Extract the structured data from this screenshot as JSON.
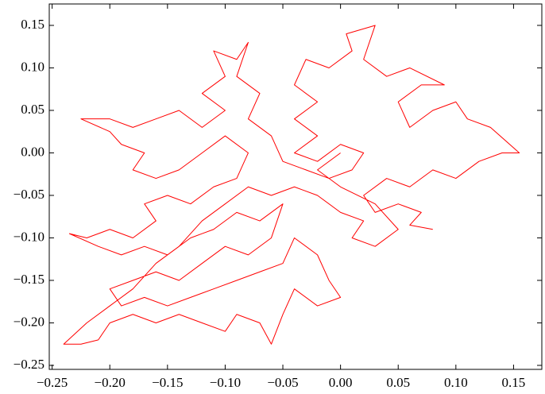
{
  "chart_data": {
    "type": "line",
    "x": [
      0.08,
      0.06,
      0.07,
      0.05,
      0.03,
      0.02,
      0.04,
      0.06,
      0.08,
      0.1,
      0.12,
      0.14,
      0.155,
      0.13,
      0.11,
      0.1,
      0.08,
      0.06,
      0.05,
      0.07,
      0.09,
      0.06,
      0.04,
      0.02,
      0.03,
      0.005,
      0.01,
      -0.01,
      -0.03,
      -0.04,
      -0.02,
      -0.04,
      -0.02,
      -0.04,
      -0.02,
      0.0,
      0.02,
      0.01,
      -0.01,
      -0.03,
      -0.05,
      -0.06,
      -0.08,
      -0.07,
      -0.09,
      -0.08,
      -0.09,
      -0.11,
      -0.1,
      -0.12,
      -0.1,
      -0.12,
      -0.14,
      -0.16,
      -0.18,
      -0.2,
      -0.225,
      -0.2,
      -0.19,
      -0.17,
      -0.18,
      -0.16,
      -0.14,
      -0.12,
      -0.1,
      -0.08,
      -0.09,
      -0.11,
      -0.13,
      -0.15,
      -0.17,
      -0.16,
      -0.18,
      -0.2,
      -0.22,
      -0.235,
      -0.21,
      -0.19,
      -0.17,
      -0.15,
      -0.13,
      -0.11,
      -0.09,
      -0.07,
      -0.05,
      -0.06,
      -0.08,
      -0.1,
      -0.12,
      -0.14,
      -0.16,
      -0.18,
      -0.2,
      -0.19,
      -0.17,
      -0.15,
      -0.13,
      -0.11,
      -0.09,
      -0.07,
      -0.05,
      -0.04,
      -0.02,
      -0.01,
      0.0,
      -0.02,
      -0.04,
      -0.05,
      -0.06,
      -0.07,
      -0.09,
      -0.1,
      -0.12,
      -0.14,
      -0.16,
      -0.18,
      -0.2,
      -0.21,
      -0.225,
      -0.24,
      -0.22,
      -0.2,
      -0.18,
      -0.16,
      -0.14,
      -0.12,
      -0.1,
      -0.08,
      -0.06,
      -0.04,
      -0.02,
      0.0,
      0.02,
      0.01,
      0.03,
      0.05,
      0.03,
      0.0,
      -0.02,
      0.0
    ],
    "series": [
      {
        "color": "#ff0000",
        "values": [
          -0.09,
          -0.085,
          -0.07,
          -0.06,
          -0.07,
          -0.05,
          -0.03,
          -0.04,
          -0.02,
          -0.03,
          -0.01,
          0.0,
          0.0,
          0.03,
          0.04,
          0.06,
          0.05,
          0.03,
          0.06,
          0.08,
          0.08,
          0.1,
          0.09,
          0.11,
          0.15,
          0.14,
          0.12,
          0.1,
          0.11,
          0.08,
          0.06,
          0.04,
          0.02,
          0.0,
          -0.01,
          0.01,
          0.0,
          -0.02,
          -0.03,
          -0.02,
          -0.01,
          0.02,
          0.04,
          0.07,
          0.09,
          0.13,
          0.11,
          0.12,
          0.09,
          0.07,
          0.05,
          0.03,
          0.05,
          0.04,
          0.03,
          0.04,
          0.04,
          0.025,
          0.01,
          0.0,
          -0.02,
          -0.03,
          -0.02,
          0.0,
          0.02,
          0.0,
          -0.03,
          -0.04,
          -0.06,
          -0.05,
          -0.06,
          -0.08,
          -0.1,
          -0.09,
          -0.1,
          -0.095,
          -0.11,
          -0.12,
          -0.11,
          -0.12,
          -0.1,
          -0.09,
          -0.07,
          -0.08,
          -0.06,
          -0.1,
          -0.12,
          -0.11,
          -0.13,
          -0.15,
          -0.14,
          -0.15,
          -0.16,
          -0.18,
          -0.17,
          -0.18,
          -0.17,
          -0.16,
          -0.15,
          -0.14,
          -0.13,
          -0.1,
          -0.12,
          -0.15,
          -0.17,
          -0.18,
          -0.16,
          -0.19,
          -0.225,
          -0.2,
          -0.19,
          -0.21,
          -0.2,
          -0.19,
          -0.2,
          -0.19,
          -0.2,
          -0.22,
          -0.225,
          -0.225,
          -0.2,
          -0.18,
          -0.16,
          -0.13,
          -0.11,
          -0.08,
          -0.06,
          -0.04,
          -0.05,
          -0.04,
          -0.05,
          -0.07,
          -0.08,
          -0.1,
          -0.11,
          -0.09,
          -0.06,
          -0.04,
          -0.02,
          0.0
        ]
      }
    ],
    "xlim": [
      -0.2525,
      0.1745
    ],
    "ylim": [
      -0.2547,
      0.1752
    ],
    "xticks": [
      {
        "value": -0.25,
        "label": "−0.25"
      },
      {
        "value": -0.2,
        "label": "−0.20"
      },
      {
        "value": -0.15,
        "label": "−0.15"
      },
      {
        "value": -0.1,
        "label": "−0.10"
      },
      {
        "value": -0.05,
        "label": "−0.05"
      },
      {
        "value": 0,
        "label": "0.00"
      },
      {
        "value": 0.05,
        "label": "0.05"
      },
      {
        "value": 0.1,
        "label": "0.10"
      },
      {
        "value": 0.15,
        "label": "0.15"
      }
    ],
    "yticks": [
      {
        "value": -0.25,
        "label": "−0.25"
      },
      {
        "value": -0.2,
        "label": "−0.20"
      },
      {
        "value": -0.15,
        "label": "−0.15"
      },
      {
        "value": -0.1,
        "label": "−0.10"
      },
      {
        "value": -0.05,
        "label": "−0.05"
      },
      {
        "value": 0,
        "label": "0.00"
      },
      {
        "value": 0.05,
        "label": "0.05"
      },
      {
        "value": 0.1,
        "label": "0.10"
      },
      {
        "value": 0.15,
        "label": "0.15"
      }
    ]
  }
}
